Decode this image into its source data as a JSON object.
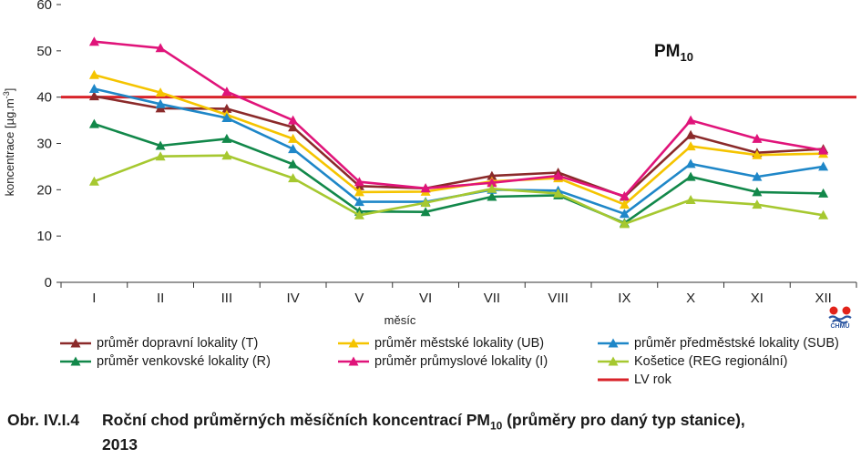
{
  "chart_data": {
    "type": "line",
    "title": "PM10",
    "title_main": "PM",
    "title_sub": "10",
    "xlabel": "měsíc",
    "ylabel": "koncentrace [µg.m-3]",
    "ylabel_main": "koncentrace [µg.m",
    "ylabel_sup": "-3",
    "ylabel_end": "]",
    "ylim": [
      0,
      60
    ],
    "yticks": [
      "0",
      "10",
      "20",
      "30",
      "40",
      "50",
      "60"
    ],
    "categories": [
      "I",
      "II",
      "III",
      "IV",
      "V",
      "VI",
      "VII",
      "VIII",
      "IX",
      "X",
      "XI",
      "XII"
    ],
    "grid": false,
    "legend_position": "bottom",
    "series": [
      {
        "name": "průměr dopravní lokality (T)",
        "color": "#8b2a2a",
        "marker": "triangle",
        "values": [
          40.2,
          37.6,
          37.5,
          33.5,
          20.8,
          20.3,
          23.0,
          23.7,
          18.5,
          31.8,
          28.0,
          28.8
        ]
      },
      {
        "name": "průměr venkovské lokality (R)",
        "color": "#12884a",
        "marker": "triangle",
        "values": [
          34.2,
          29.5,
          31.0,
          25.5,
          15.3,
          15.2,
          18.5,
          18.8,
          12.8,
          22.8,
          19.5,
          19.2
        ]
      },
      {
        "name": "průměr městské lokality (UB)",
        "color": "#f5c400",
        "marker": "triangle",
        "values": [
          44.8,
          41.0,
          36.2,
          31.0,
          19.5,
          19.6,
          21.8,
          22.5,
          16.8,
          29.4,
          27.5,
          27.8
        ]
      },
      {
        "name": "průměr průmyslové lokality (I)",
        "color": "#e0147a",
        "marker": "triangle",
        "values": [
          52.0,
          50.6,
          41.2,
          35.0,
          21.7,
          20.3,
          21.5,
          23.0,
          18.6,
          35.0,
          31.0,
          28.5
        ]
      },
      {
        "name": "průměr předměstské lokality (SUB)",
        "color": "#1f87c8",
        "marker": "triangle",
        "values": [
          41.8,
          38.5,
          35.5,
          28.8,
          17.4,
          17.4,
          20.0,
          19.8,
          14.8,
          25.6,
          22.8,
          25.0
        ]
      },
      {
        "name": "Košetice (REG regionální)",
        "color": "#a6c830",
        "marker": "triangle",
        "values": [
          21.8,
          27.2,
          27.4,
          22.5,
          14.5,
          17.2,
          20.2,
          19.2,
          12.6,
          17.8,
          16.8,
          14.5
        ]
      },
      {
        "name": "LV rok",
        "color": "#d8232a",
        "marker": "none",
        "type": "hline",
        "value": 40
      }
    ]
  },
  "legend": [
    {
      "label": "průměr dopravní lokality (T)",
      "color": "#8b2a2a",
      "marker": true
    },
    {
      "label": "průměr městské lokality (UB)",
      "color": "#f5c400",
      "marker": true
    },
    {
      "label": "průměr předměstské lokality (SUB)",
      "color": "#1f87c8",
      "marker": true
    },
    {
      "label": "průměr venkovské lokality (R)",
      "color": "#12884a",
      "marker": true
    },
    {
      "label": "průměr průmyslové lokality (I)",
      "color": "#e0147a",
      "marker": true
    },
    {
      "label": "Košetice (REG regionální)",
      "color": "#a6c830",
      "marker": true
    },
    {
      "label": "",
      "color": "",
      "marker": false
    },
    {
      "label": "",
      "color": "",
      "marker": false
    },
    {
      "label": "LV rok",
      "color": "#d8232a",
      "marker": false
    }
  ],
  "caption": {
    "number": "Obr. IV.I.4",
    "text_before_sub": "Roční chod průměrných měsíčních koncentrací PM",
    "sub": "10",
    "text_after_sub": " (průměry pro daný typ stanice),",
    "line2": "2013"
  },
  "logo": {
    "text": "ČHMÚ",
    "colors": [
      "#e2231a",
      "#2a55a0"
    ]
  }
}
